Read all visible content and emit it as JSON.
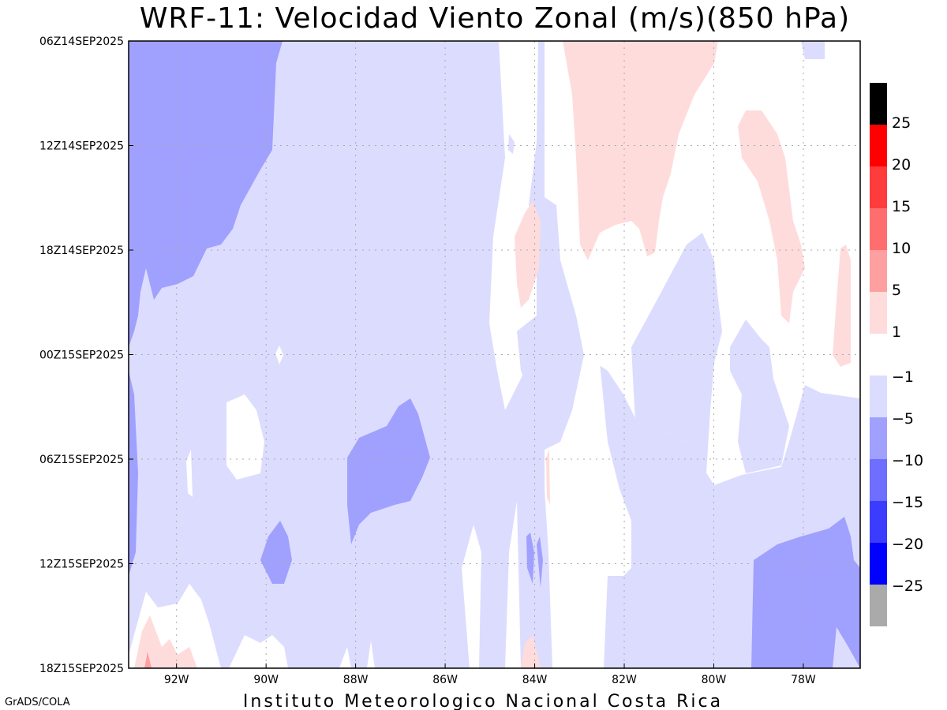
{
  "chart_data": {
    "type": "heatmap",
    "subtype": "filled-contour hovmoller",
    "title": "WRF-11: Velocidad  Viento Zonal (m/s)(850 hPa)",
    "xlabel": "",
    "ylabel": "",
    "x_ticks": [
      "92W",
      "90W",
      "88W",
      "86W",
      "84W",
      "82W",
      "80W",
      "78W"
    ],
    "x_tick_values": [
      -92,
      -90,
      -88,
      -86,
      -84,
      -82,
      -80,
      -78
    ],
    "xlim": [
      -93.07,
      -76.73
    ],
    "y_ticks": [
      "06Z14SEP2025",
      "12Z14SEP2025",
      "18Z14SEP2025",
      "00Z15SEP2025",
      "06Z15SEP2025",
      "12Z15SEP2025",
      "18Z15SEP2025"
    ],
    "ylim_hours": [
      0,
      36
    ],
    "grid": true,
    "colorbar": {
      "position": "right",
      "positive": [
        {
          "label": "25",
          "color": "#000000"
        },
        {
          "label": "20",
          "color": "#ff0000"
        },
        {
          "label": "15",
          "color": "#ff3c3c"
        },
        {
          "label": "10",
          "color": "#ff6e6e"
        },
        {
          "label": "5",
          "color": "#ffa0a0"
        },
        {
          "label": "1",
          "color": "#ffdcdc"
        }
      ],
      "negative": [
        {
          "label": "-1",
          "color": "#dcdcff"
        },
        {
          "label": "-5",
          "color": "#a0a0ff"
        },
        {
          "label": "-10",
          "color": "#6e6eff"
        },
        {
          "label": "-15",
          "color": "#3c3cff"
        },
        {
          "label": "-20",
          "color": "#0000ff"
        },
        {
          "label": "-25",
          "color": "#0000ff"
        }
      ],
      "below_min_color": "#aaaaaa"
    },
    "colors": {
      "neutral": "#ffffff",
      "weak_east": "#dcdcff",
      "mod_east": "#a0a0ff",
      "weak_west": "#ffdcdc",
      "mod_west": "#ffa0a0"
    }
  },
  "footer": {
    "institution": "Instituto Meteorologico Nacional Costa Rica",
    "software": "GrADS/COLA"
  }
}
